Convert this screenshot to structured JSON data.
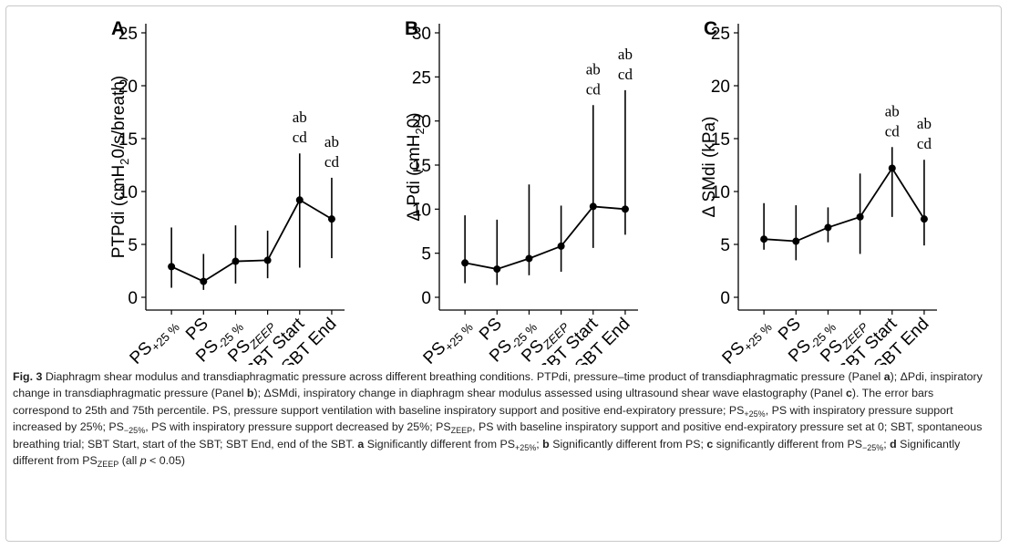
{
  "chart_data": [
    {
      "panel": "A",
      "type": "line",
      "ylabel": "PTPdi (cmH20/s/breath)",
      "ylim": [
        0,
        25
      ],
      "yticks": [
        0,
        5,
        10,
        15,
        20,
        25
      ],
      "categories": [
        "PS+25 %",
        "PS",
        "PS-25 %",
        "PSZEEP",
        "SBT Start",
        "SBT End"
      ],
      "values": [
        2.9,
        1.5,
        3.4,
        3.5,
        9.2,
        7.4
      ],
      "error_low": [
        0.9,
        0.7,
        1.3,
        1.8,
        2.8,
        3.7
      ],
      "error_high": [
        6.6,
        4.1,
        6.8,
        6.3,
        13.6,
        11.3
      ],
      "annotations": [
        {
          "index": 4,
          "lines": [
            "ab",
            "cd"
          ]
        },
        {
          "index": 5,
          "lines": [
            "ab",
            "cd"
          ]
        }
      ]
    },
    {
      "panel": "B",
      "type": "line",
      "ylabel": "Δ Pdi (cmH20)",
      "ylim": [
        0,
        30
      ],
      "yticks": [
        0,
        5,
        10,
        15,
        20,
        25,
        30
      ],
      "categories": [
        "PS+25 %",
        "PS",
        "PS-25 %",
        "PSZEEP",
        "SBT Start",
        "SBT End"
      ],
      "values": [
        3.9,
        3.2,
        4.4,
        5.8,
        10.3,
        10.0
      ],
      "error_low": [
        1.6,
        1.4,
        2.5,
        2.9,
        5.6,
        7.1
      ],
      "error_high": [
        9.3,
        8.8,
        12.8,
        10.4,
        21.8,
        23.5
      ],
      "annotations": [
        {
          "index": 4,
          "lines": [
            "ab",
            "cd"
          ]
        },
        {
          "index": 5,
          "lines": [
            "ab",
            "cd"
          ]
        }
      ]
    },
    {
      "panel": "C",
      "type": "line",
      "ylabel": "Δ SMdi (kPa)",
      "ylim": [
        0,
        25
      ],
      "yticks": [
        0,
        5,
        10,
        15,
        20,
        25
      ],
      "categories": [
        "PS+25 %",
        "PS",
        "PS-25 %",
        "PSZEEP",
        "SBT Start",
        "SBT End"
      ],
      "values": [
        5.5,
        5.3,
        6.6,
        7.6,
        12.2,
        7.4
      ],
      "error_low": [
        4.5,
        3.5,
        5.2,
        4.1,
        7.6,
        4.9
      ],
      "error_high": [
        8.9,
        8.7,
        8.5,
        11.7,
        14.2,
        13.0
      ],
      "annotations": [
        {
          "index": 4,
          "lines": [
            "ab",
            "cd"
          ]
        },
        {
          "index": 5,
          "lines": [
            "ab",
            "cd"
          ]
        }
      ]
    }
  ],
  "caption": {
    "fig_label": "Fig. 3",
    "text": "Diaphragm shear modulus and transdiaphragmatic pressure across different breathing conditions. PTPdi, pressure–time product of transdiaphragmatic pressure (Panel a); ΔPdi, inspiratory change in transdiaphragmatic pressure (Panel b); ΔSMdi, inspiratory change in diaphragm shear modulus assessed using ultrasound shear wave elastography (Panel c). The error bars correspond to 25th and 75th percentile. PS, pressure support ventilation with baseline inspiratory support and positive end-expiratory pressure; PS+25%, PS with inspiratory pressure support increased by 25%; PS−25%, PS with inspiratory pressure support decreased by 25%; PSZEEP, PS with baseline inspiratory support and positive end-expiratory pressure set at 0; SBT, spontaneous breathing trial; SBT Start, start of the SBT; SBT End, end of the SBT. a Significantly different from PS+25%; b Significantly different from PS; c significantly different from PS−25%; d Significantly different from PSZEEP (all p < 0.05)"
  }
}
